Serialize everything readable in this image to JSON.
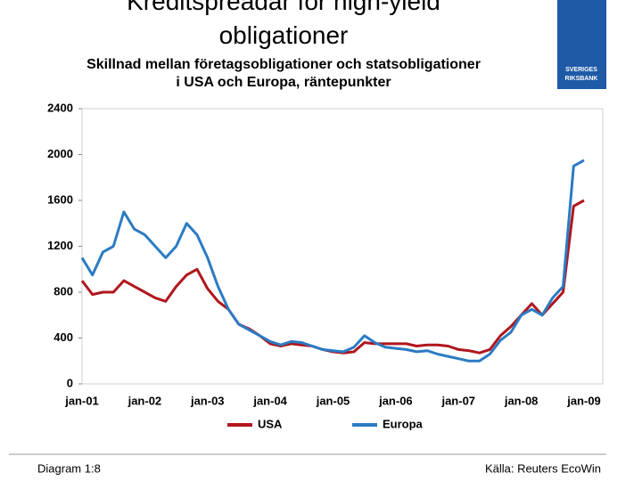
{
  "chart_data": {
    "type": "line",
    "title": "Kreditspreadar för high-yield obligationer",
    "subtitle": [
      "Skillnad mellan företagsobligationer och statsobligationer",
      "i USA och Europa, räntepunkter"
    ],
    "categories": [
      "jan-01",
      null,
      null,
      null,
      null,
      null,
      "jan-02",
      null,
      null,
      null,
      null,
      null,
      "jan-03",
      null,
      null,
      null,
      null,
      null,
      "jan-04",
      null,
      null,
      null,
      null,
      null,
      "jan-05",
      null,
      null,
      null,
      null,
      null,
      "jan-06",
      null,
      null,
      null,
      null,
      null,
      "jan-07",
      null,
      null,
      null,
      null,
      null,
      "jan-08",
      null,
      null,
      null,
      null,
      null,
      "jan-09"
    ],
    "series": [
      {
        "name": "USA",
        "color": "#b0161c",
        "values": [
          900,
          780,
          800,
          800,
          900,
          850,
          800,
          750,
          720,
          850,
          950,
          1000,
          830,
          720,
          650,
          520,
          480,
          420,
          350,
          330,
          350,
          340,
          330,
          300,
          280,
          270,
          280,
          360,
          350,
          350,
          350,
          350,
          330,
          340,
          340,
          330,
          300,
          290,
          270,
          300,
          420,
          500,
          600,
          700,
          600,
          700,
          800,
          1550,
          1600
        ]
      },
      {
        "name": "Europa",
        "color": "#2b7bc4",
        "values": [
          1100,
          950,
          1150,
          1200,
          1500,
          1350,
          1300,
          1200,
          1100,
          1200,
          1400,
          1300,
          1100,
          850,
          650,
          520,
          470,
          420,
          370,
          340,
          370,
          360,
          330,
          300,
          290,
          280,
          320,
          420,
          360,
          320,
          310,
          300,
          280,
          290,
          260,
          240,
          220,
          200,
          200,
          260,
          380,
          450,
          600,
          650,
          600,
          750,
          850,
          1900,
          1950
        ]
      }
    ],
    "ylim": [
      0,
      2400
    ],
    "yticks": [
      0,
      400,
      800,
      1200,
      1600,
      2000,
      2400
    ],
    "grid": false,
    "legend": "bottom"
  },
  "footer": {
    "left": "Diagram 1:8",
    "right": "Källa: Reuters EcoWin"
  },
  "logo": [
    "SVERIGES",
    "RIKSBANK"
  ]
}
